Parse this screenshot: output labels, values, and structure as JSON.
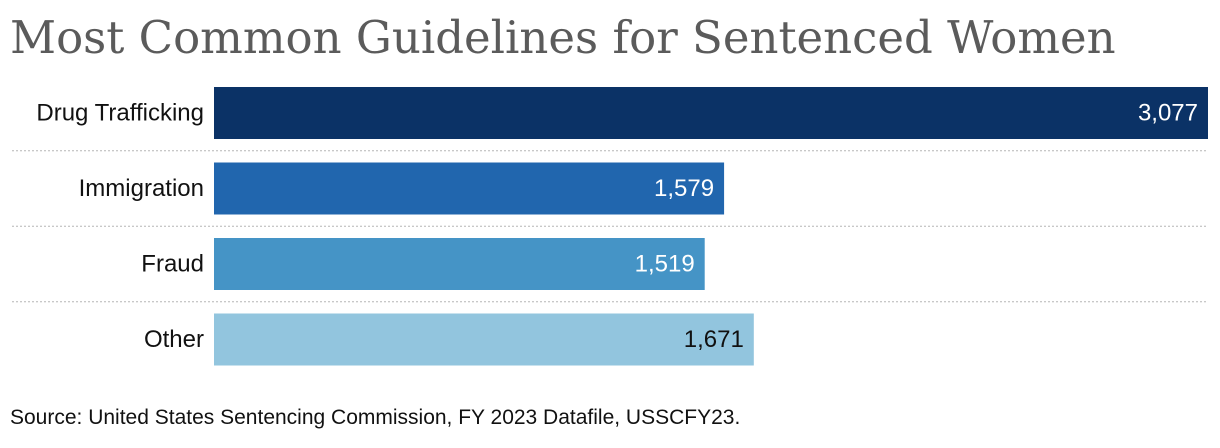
{
  "chart_data": {
    "type": "bar",
    "orientation": "horizontal",
    "title": "Most Common Guidelines for Sentenced Women",
    "categories": [
      "Drug Trafficking",
      "Immigration",
      "Fraud",
      "Other"
    ],
    "values": [
      3077,
      1579,
      1519,
      1671
    ],
    "value_labels": [
      "3,077",
      "1,579",
      "1,519",
      "1,671"
    ],
    "xlim": [
      0,
      3077
    ],
    "colors": [
      "#0b3266",
      "#2166ae",
      "#4594c6",
      "#92c5de"
    ],
    "label_colors": [
      "#ffffff",
      "#ffffff",
      "#ffffff",
      "#111111"
    ],
    "grid": false,
    "legend": "none",
    "source": "Source: United States Sentencing Commission, FY 2023 Datafile, USSCFY23."
  }
}
